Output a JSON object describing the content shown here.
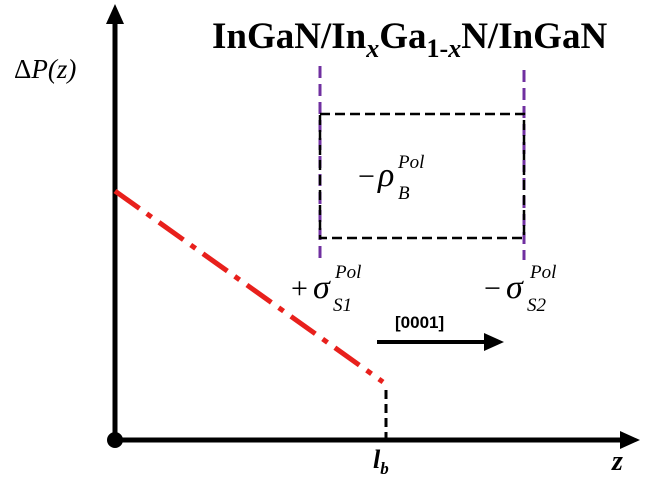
{
  "title": {
    "part1": "InGaN/In",
    "x1": "x",
    "part2": "Ga",
    "sub2": "1-",
    "x2": "x",
    "part3": "N/InGaN"
  },
  "y_axis_label": {
    "delta": "Δ",
    "var": "P",
    "arg": "(z)"
  },
  "x_axis_label": "z",
  "tick_label": {
    "main": "l",
    "sub": "b"
  },
  "bulk_charge": {
    "sign": "−",
    "symbol": "ρ",
    "sup": "Pol",
    "sub": "B"
  },
  "surface_charge_1": {
    "sign": "+",
    "symbol": "σ",
    "sup": "Pol",
    "sub": "S1"
  },
  "surface_charge_2": {
    "sign": "−",
    "symbol": "σ",
    "sup": "Pol",
    "sub": "S2"
  },
  "direction_label": "[0001]",
  "colors": {
    "axis": "#000000",
    "polarization_line": "#e8201c",
    "interface_lines": "#7030a0",
    "box": "#000000"
  }
}
